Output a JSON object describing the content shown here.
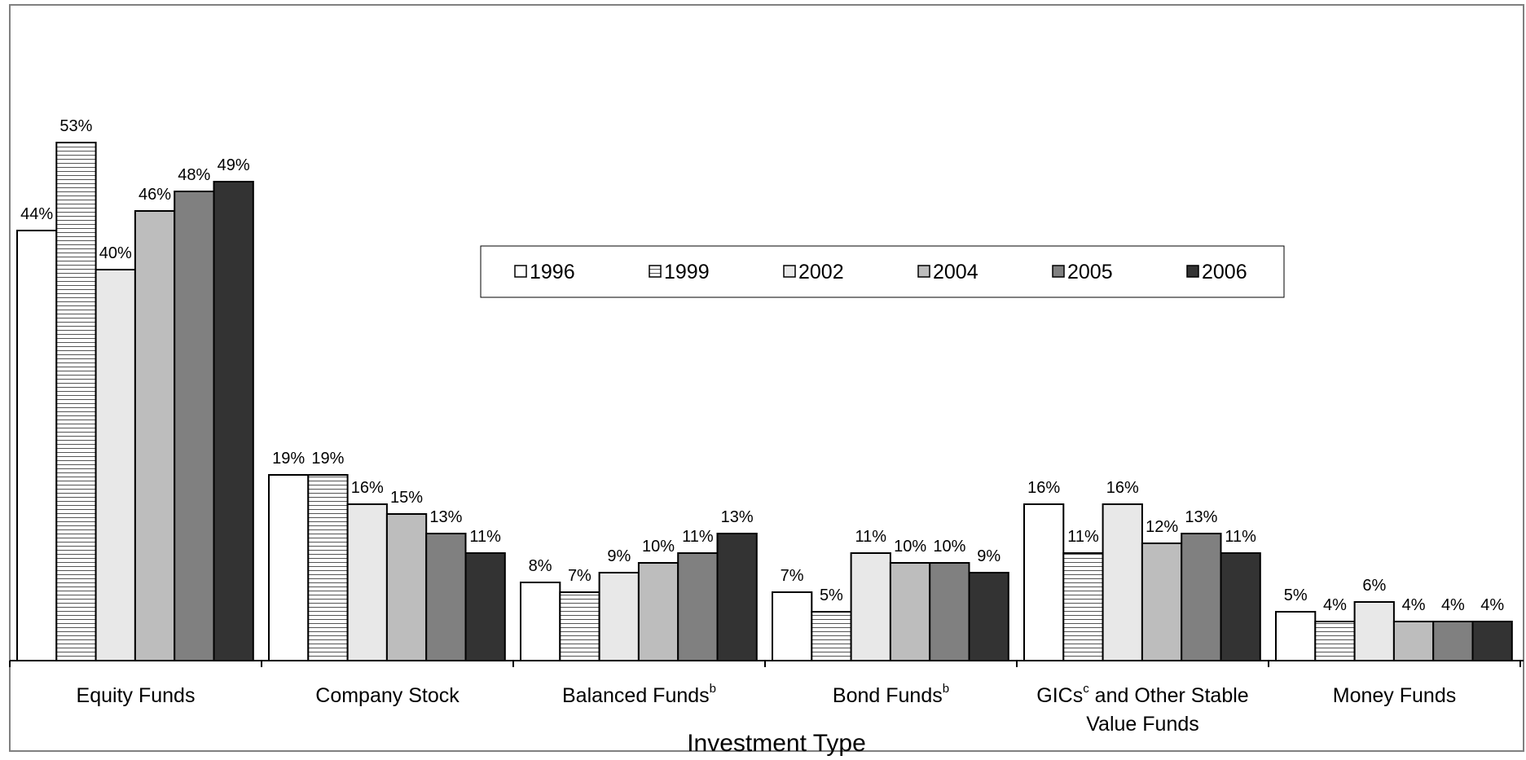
{
  "chart_data": {
    "type": "bar",
    "categories": [
      {
        "label": "Equity Funds",
        "sup": ""
      },
      {
        "label": "Company Stock",
        "sup": ""
      },
      {
        "label": "Balanced Funds",
        "sup": "b"
      },
      {
        "label": "Bond Funds",
        "sup": "b"
      },
      {
        "label": "GICs",
        "sup": "c",
        "line1_rest": " and Other Stable",
        "line2": "Value Funds"
      },
      {
        "label": "Money Funds",
        "sup": ""
      }
    ],
    "series": [
      {
        "name": "1996",
        "values": [
          44,
          19,
          8,
          7,
          16,
          5
        ],
        "labels": [
          "44%",
          "19%",
          "8%",
          "7%",
          "16%",
          "5%"
        ],
        "fill": "#ffffff",
        "pattern": "none"
      },
      {
        "name": "1999",
        "values": [
          53,
          19,
          7,
          5,
          11,
          4
        ],
        "labels": [
          "53%",
          "19%",
          "7%",
          "5%",
          "11%",
          "4%"
        ],
        "fill": "#ffffff",
        "pattern": "horizontal-lines"
      },
      {
        "name": "2002",
        "values": [
          40,
          16,
          9,
          11,
          16,
          6
        ],
        "labels": [
          "40%",
          "16%",
          "9%",
          "11%",
          "16%",
          "6%"
        ],
        "fill": "#e8e8e8",
        "pattern": "none"
      },
      {
        "name": "2004",
        "values": [
          46,
          15,
          10,
          10,
          12,
          4
        ],
        "labels": [
          "46%",
          "15%",
          "10%",
          "10%",
          "12%",
          "4%"
        ],
        "fill": "#bdbdbd",
        "pattern": "none"
      },
      {
        "name": "2005",
        "values": [
          48,
          13,
          11,
          10,
          13,
          4
        ],
        "labels": [
          "48%",
          "13%",
          "11%",
          "10%",
          "13%",
          "4%"
        ],
        "fill": "#808080",
        "pattern": "none"
      },
      {
        "name": "2006",
        "values": [
          49,
          11,
          13,
          9,
          11,
          4
        ],
        "labels": [
          "49%",
          "11%",
          "13%",
          "9%",
          "11%",
          "4%"
        ],
        "fill": "#333333",
        "pattern": "none"
      }
    ],
    "xlabel": "Investment Type",
    "ylabel": "",
    "ylim": [
      0,
      55
    ],
    "grid": false,
    "legend": {
      "placement": "center",
      "orientation": "horizontal"
    }
  }
}
